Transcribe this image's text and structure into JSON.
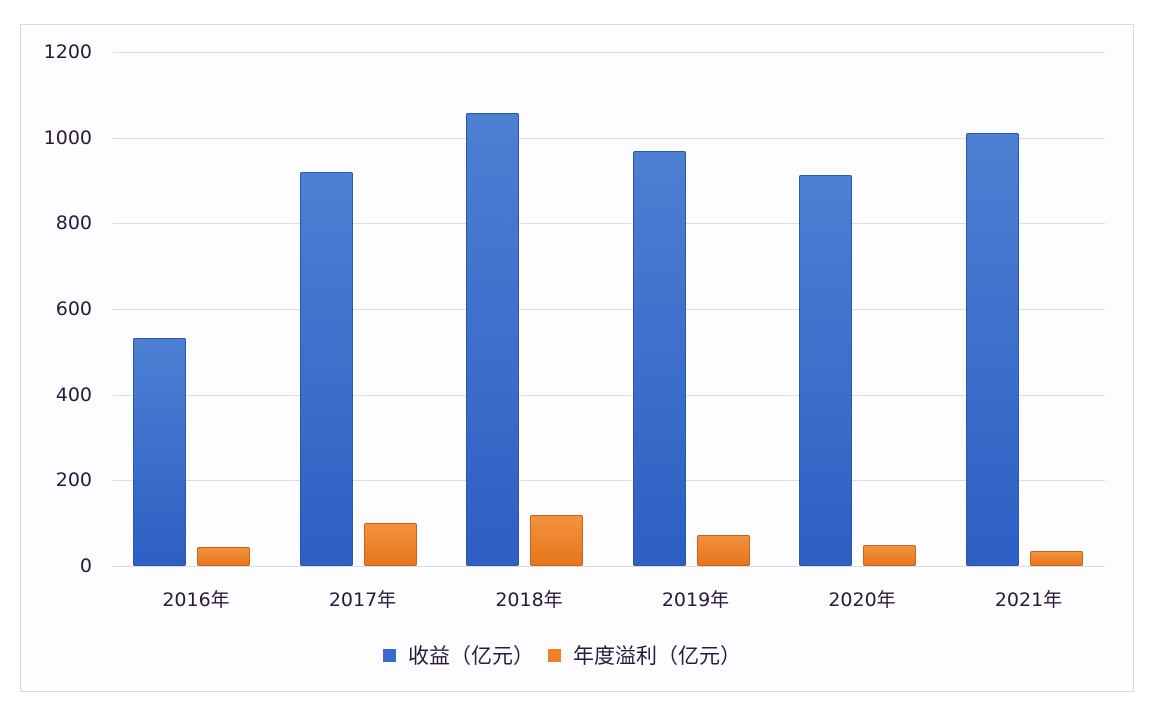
{
  "chart_data": {
    "type": "bar",
    "title": "",
    "xlabel": "",
    "ylabel": "",
    "categories": [
      "2016年",
      "2017年",
      "2018年",
      "2019年",
      "2020年",
      "2021年"
    ],
    "series": [
      {
        "name": "收益（亿元）",
        "color": "#3a6bcc",
        "values": [
          533,
          921,
          1058,
          970,
          914,
          1012
        ]
      },
      {
        "name": "年度溢利（亿元）",
        "color": "#ee8126",
        "values": [
          44,
          100,
          119,
          72,
          49,
          35
        ]
      }
    ],
    "ylim": [
      0,
      1200
    ],
    "yticks": [
      "0",
      "200",
      "400",
      "600",
      "800",
      "1000",
      "1200"
    ],
    "grid": true,
    "legend_position": "bottom"
  }
}
